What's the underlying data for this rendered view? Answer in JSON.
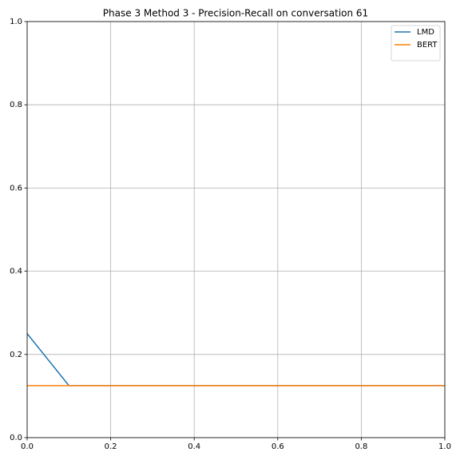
{
  "chart_data": {
    "type": "line",
    "title": "Phase 3 Method 3 - Precision-Recall on conversation 61",
    "series": [
      {
        "name": "LMD",
        "color": "#1f77b4",
        "x": [
          0,
          0.1,
          1
        ],
        "values": [
          0.25,
          0.125,
          0.125
        ]
      },
      {
        "name": "BERT",
        "color": "#ff7f0e",
        "x": [
          0,
          1
        ],
        "values": [
          0.125,
          0.125
        ]
      }
    ],
    "xlim": [
      0,
      1
    ],
    "ylim": [
      0,
      1
    ],
    "xticks": [
      {
        "value": 0,
        "label": "0.0"
      },
      {
        "value": 0.2,
        "label": "0.2"
      },
      {
        "value": 0.4,
        "label": "0.4"
      },
      {
        "value": 0.6,
        "label": "0.6"
      },
      {
        "value": 0.8,
        "label": "0.8"
      },
      {
        "value": 1,
        "label": "1.0"
      }
    ],
    "yticks": [
      {
        "value": 0,
        "label": "0.0"
      },
      {
        "value": 0.2,
        "label": "0.2"
      },
      {
        "value": 0.4,
        "label": "0.4"
      },
      {
        "value": 0.6,
        "label": "0.6"
      },
      {
        "value": 0.8,
        "label": "0.8"
      },
      {
        "value": 1,
        "label": "1.0"
      }
    ],
    "grid": true,
    "legend": "upper right"
  }
}
